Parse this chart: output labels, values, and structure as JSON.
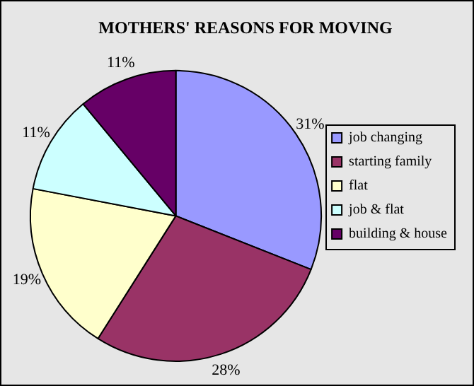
{
  "chart_data": {
    "type": "pie",
    "title": "MOTHERS' REASONS FOR MOVING",
    "categories": [
      "job changing",
      "starting family",
      "flat",
      "job & flat",
      "building & house"
    ],
    "values": [
      31,
      28,
      19,
      11,
      11
    ],
    "colors": [
      "#9999ff",
      "#993366",
      "#ffffcc",
      "#ccffff",
      "#660066"
    ],
    "value_labels": [
      "31%",
      "28%",
      "19%",
      "11%",
      "11%"
    ],
    "legend": "right"
  }
}
